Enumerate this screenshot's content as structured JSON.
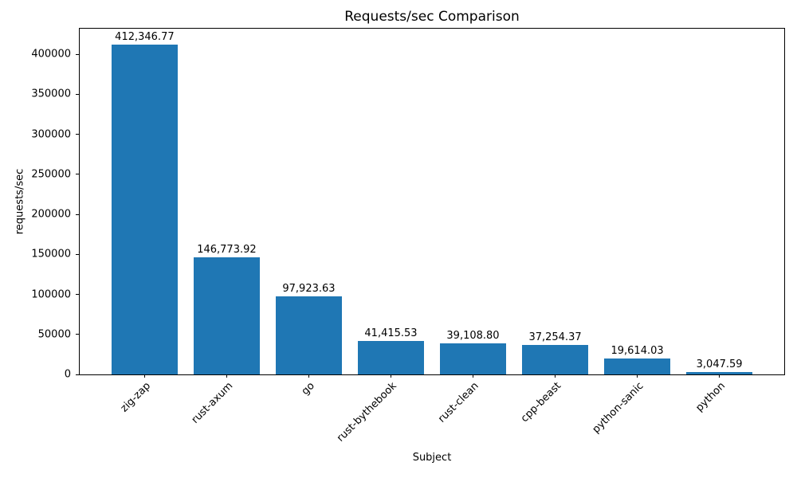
{
  "chart_data": {
    "type": "bar",
    "title": "Requests/sec Comparison",
    "xlabel": "Subject",
    "ylabel": "requests/sec",
    "categories": [
      "zig-zap",
      "rust-axum",
      "go",
      "rust-bythebook",
      "rust-clean",
      "cpp-beast",
      "python-sanic",
      "python"
    ],
    "values": [
      412346.77,
      146773.92,
      97923.63,
      41415.53,
      39108.8,
      37254.37,
      19614.03,
      3047.59
    ],
    "value_labels": [
      "412,346.77",
      "146,773.92",
      "97,923.63",
      "41,415.53",
      "39,108.80",
      "37,254.37",
      "19,614.03",
      "3,047.59"
    ],
    "bar_color": "#1f77b4",
    "yticks": [
      0,
      50000,
      100000,
      150000,
      200000,
      250000,
      300000,
      350000,
      400000
    ],
    "ytick_labels": [
      "0",
      "50000",
      "100000",
      "150000",
      "200000",
      "250000",
      "300000",
      "350000",
      "400000"
    ],
    "ylim": [
      0,
      432000
    ],
    "xtick_rotation": 45,
    "grid": false,
    "legend_position": "none",
    "background_color": "#ffffff",
    "axis_color": "#000000"
  }
}
